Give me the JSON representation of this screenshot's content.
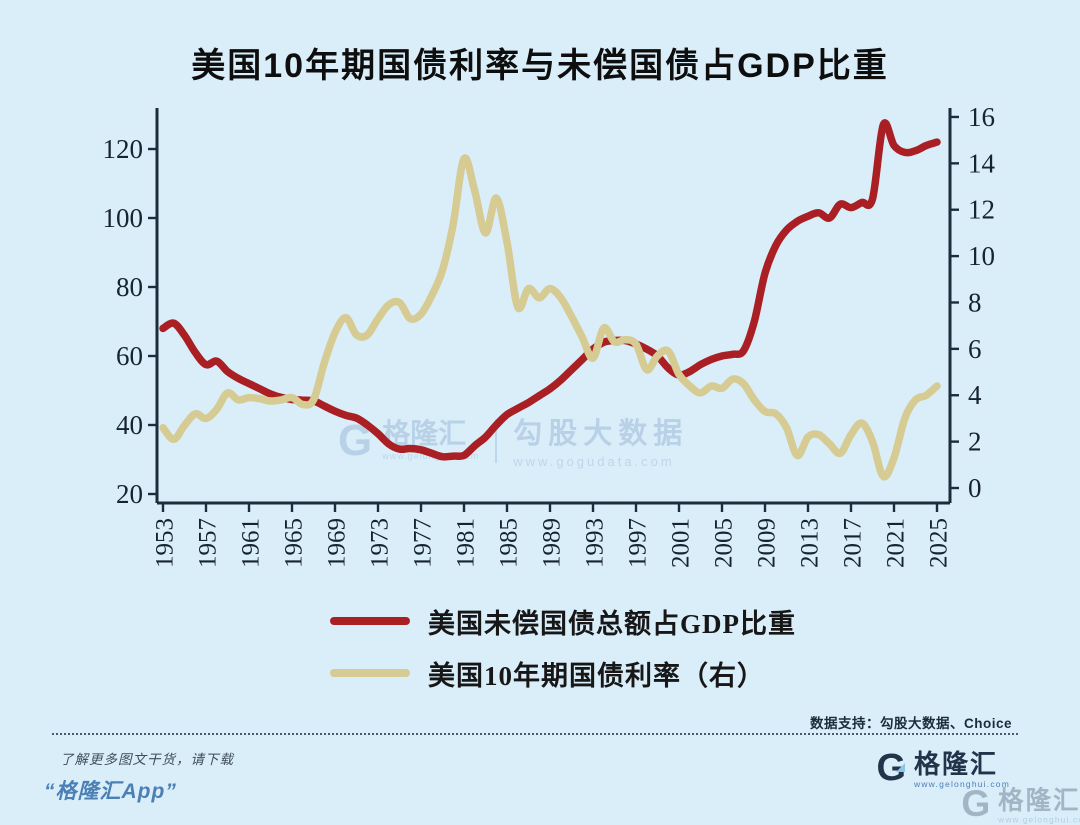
{
  "title": "美国10年期国债利率与未偿国债占GDP比重",
  "legend": {
    "items": [
      {
        "label": "美国未偿国债总额占GDP比重",
        "color": "#aa1f23"
      },
      {
        "label": "美国10年期国债利率（右）",
        "color": "#d6cb92"
      }
    ]
  },
  "watermark_center": {
    "brand_icon": "G",
    "brand": "格隆汇",
    "brand_url": "www.gelonghui.com",
    "partner": "勾股大数据",
    "partner_url": "www.gogudata.com"
  },
  "footer": {
    "data_support": "数据支持：勾股大数据、Choice",
    "promo_line1": "了解更多图文干货，请下载",
    "promo_line2": "“格隆汇App”",
    "brand_icon": "G",
    "brand": "格隆汇",
    "brand_url": "www.gelonghui.com"
  },
  "colors": {
    "background": "#daeefa",
    "axis": "#1d2c3a",
    "debt_line": "#aa1f23",
    "yield_line": "#d6cb92",
    "watermark": "#b3cde4"
  },
  "chart_data": {
    "type": "line",
    "title": "美国10年期国债利率与未偿国债占GDP比重",
    "grid": false,
    "legend_position": "bottom",
    "years": [
      1953,
      1954,
      1955,
      1956,
      1957,
      1958,
      1959,
      1960,
      1961,
      1962,
      1963,
      1964,
      1965,
      1966,
      1967,
      1968,
      1969,
      1970,
      1971,
      1972,
      1973,
      1974,
      1975,
      1976,
      1977,
      1978,
      1979,
      1980,
      1981,
      1982,
      1983,
      1984,
      1985,
      1986,
      1987,
      1988,
      1989,
      1990,
      1991,
      1992,
      1993,
      1994,
      1995,
      1996,
      1997,
      1998,
      1999,
      2000,
      2001,
      2002,
      2003,
      2004,
      2005,
      2006,
      2007,
      2008,
      2009,
      2010,
      2011,
      2012,
      2013,
      2014,
      2015,
      2016,
      2017,
      2018,
      2019,
      2020,
      2021,
      2022,
      2023,
      2024,
      2025
    ],
    "x_ticks": [
      1953,
      1957,
      1961,
      1965,
      1969,
      1973,
      1977,
      1981,
      1985,
      1989,
      1993,
      1997,
      2001,
      2005,
      2009,
      2013,
      2017,
      2021,
      2025
    ],
    "left_axis": {
      "ticks": [
        20,
        40,
        60,
        80,
        100,
        120
      ],
      "range": [
        17.4,
        131.9
      ],
      "unit": "%GDP"
    },
    "right_axis": {
      "ticks": [
        0,
        2,
        4,
        6,
        8,
        10,
        12,
        14,
        16
      ],
      "range": [
        -0.65,
        16.4
      ],
      "unit": "%"
    },
    "series": [
      {
        "name": "美国未偿国债总额占GDP比重",
        "axis": "left",
        "color": "#aa1f23",
        "values": [
          68,
          69.5,
          66,
          61,
          57.5,
          58.5,
          55.5,
          53.5,
          52,
          50.5,
          49,
          48,
          47.4,
          47.2,
          47,
          45.5,
          44,
          42.8,
          42,
          40,
          37.5,
          34.5,
          33,
          33.2,
          32.8,
          31.8,
          30.8,
          31,
          31.2,
          34,
          36.5,
          40,
          43,
          44.8,
          46.5,
          48.5,
          50.5,
          53,
          56,
          59,
          62,
          64,
          64.5,
          64.5,
          63.5,
          62,
          60,
          56.5,
          54.5,
          55.5,
          57.5,
          59,
          60,
          60.5,
          61.5,
          70,
          84,
          92,
          96.5,
          99,
          100.5,
          101.5,
          100,
          104,
          103,
          104.5,
          105.5,
          127,
          121,
          119,
          119.5,
          121,
          122
        ]
      },
      {
        "name": "美国10年期国债利率（右）",
        "axis": "right",
        "color": "#d6cb92",
        "values": [
          2.6,
          2.1,
          2.7,
          3.2,
          3.0,
          3.4,
          4.1,
          3.8,
          3.9,
          3.85,
          3.75,
          3.8,
          3.9,
          3.6,
          3.8,
          5.4,
          6.7,
          7.35,
          6.6,
          6.6,
          7.3,
          7.9,
          8.0,
          7.3,
          7.5,
          8.3,
          9.4,
          11.4,
          14.2,
          12.8,
          11.0,
          12.5,
          10.6,
          7.8,
          8.6,
          8.2,
          8.6,
          8.2,
          7.4,
          6.5,
          5.6,
          6.9,
          6.3,
          6.4,
          6.2,
          5.1,
          5.7,
          5.9,
          4.9,
          4.4,
          4.1,
          4.4,
          4.3,
          4.7,
          4.5,
          3.8,
          3.3,
          3.2,
          2.6,
          1.4,
          2.2,
          2.3,
          1.9,
          1.5,
          2.3,
          2.8,
          2.0,
          0.5,
          1.3,
          3.0,
          3.8,
          4.0,
          4.4
        ]
      }
    ]
  }
}
